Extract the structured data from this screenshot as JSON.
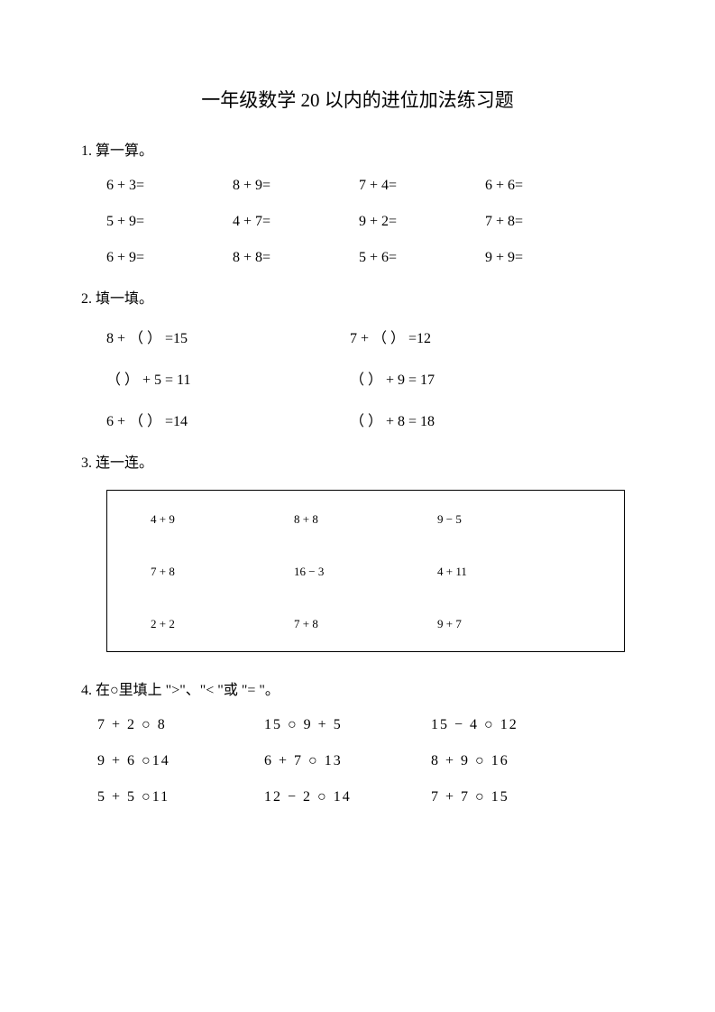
{
  "title": "一年级数学 20 以内的进位加法练习题",
  "section1": {
    "heading": "1.  算一算。",
    "rows": [
      [
        "6 + 3=",
        "8 + 9=",
        "7 + 4=",
        "6 + 6="
      ],
      [
        "5 + 9=",
        "4 + 7=",
        "9 + 2=",
        "7 + 8="
      ],
      [
        "6 + 9=",
        "8 + 8=",
        "5 + 6=",
        "9 + 9="
      ]
    ]
  },
  "section2": {
    "heading": "2.  填一填。",
    "rows": [
      [
        "8 + （  ） =15",
        "7 + （  ） =12"
      ],
      [
        "（  ）  + 5 = 11",
        "（  ）  + 9 = 17"
      ],
      [
        "6 + （  ） =14",
        "（  ）  + 8 = 18"
      ]
    ]
  },
  "section3": {
    "heading": "3.  连一连。",
    "rows": [
      [
        "4 + 9",
        "8 + 8",
        "9 − 5"
      ],
      [
        "7 + 8",
        "16 − 3",
        "4 + 11"
      ],
      [
        "2 + 2",
        "7 + 8",
        "9 + 7"
      ]
    ]
  },
  "section4": {
    "heading": "4.  在○里填上 \">\"、\"< \"或 \"= \"。",
    "rows": [
      [
        "7  +  2 ○ 8",
        "15 ○ 9  +  5",
        "15  −  4 ○ 12"
      ],
      [
        "9  +  6 ○14",
        "6  +  7 ○ 13",
        "8  +  9 ○ 16"
      ],
      [
        "5  +  5 ○11",
        "12  −  2 ○ 14",
        "7  +  7 ○ 15"
      ]
    ]
  }
}
